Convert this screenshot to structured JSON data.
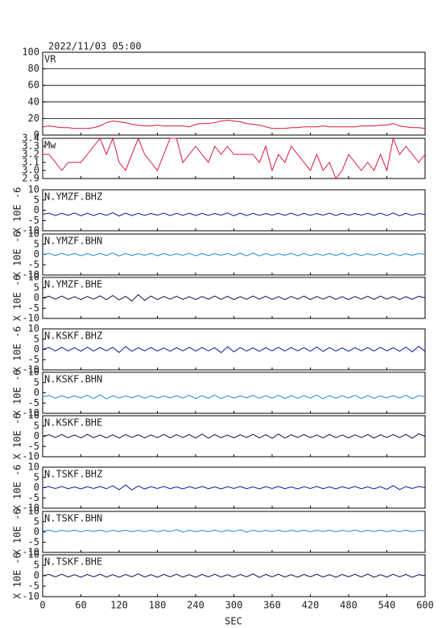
{
  "chart_data": {
    "type": "line",
    "title": "2022/11/03 05:00",
    "xlabel": "SEC",
    "xlim": [
      0,
      600
    ],
    "xticks": [
      0,
      60,
      120,
      180,
      240,
      300,
      360,
      420,
      480,
      540,
      600
    ],
    "x": [
      0,
      10,
      20,
      30,
      40,
      50,
      60,
      70,
      80,
      90,
      100,
      110,
      120,
      130,
      140,
      150,
      160,
      170,
      180,
      190,
      200,
      210,
      220,
      230,
      240,
      250,
      260,
      270,
      280,
      290,
      300,
      310,
      320,
      330,
      340,
      350,
      360,
      370,
      380,
      390,
      400,
      410,
      420,
      430,
      440,
      450,
      460,
      470,
      480,
      490,
      500,
      510,
      520,
      530,
      540,
      550,
      560,
      570,
      580,
      590,
      600
    ],
    "panels": [
      {
        "name": "VR",
        "color": "#dc143c",
        "ylim": [
          0,
          100
        ],
        "yticks": [
          0,
          20,
          40,
          60,
          80,
          100
        ],
        "grid": true,
        "values": [
          10,
          11,
          10,
          9,
          9,
          8,
          8,
          8,
          9,
          11,
          15,
          17,
          16,
          15,
          13,
          12,
          11,
          11,
          12,
          11,
          11,
          11,
          11,
          10,
          13,
          14,
          14,
          15,
          17,
          18,
          17,
          16,
          14,
          13,
          12,
          10,
          8,
          8,
          8,
          9,
          9,
          10,
          10,
          10,
          11,
          10,
          10,
          10,
          10,
          10,
          11,
          11,
          11,
          12,
          12,
          14,
          11,
          10,
          9,
          9,
          8
        ]
      },
      {
        "name": "Mw",
        "color": "#dc143c",
        "ylim": [
          2.9,
          3.4
        ],
        "yticks": [
          2.9,
          {
            "value": 3,
            "label": "3.0"
          },
          3.1,
          3.2,
          3.3,
          3.4
        ],
        "grid": false,
        "values": [
          3.2,
          3.2,
          3.1,
          3.0,
          3.1,
          3.1,
          3.1,
          3.2,
          3.3,
          3.4,
          3.2,
          3.4,
          3.1,
          3.0,
          3.2,
          3.4,
          3.2,
          3.1,
          3.0,
          3.2,
          3.4,
          3.4,
          3.1,
          3.2,
          3.3,
          3.2,
          3.1,
          3.3,
          3.2,
          3.3,
          3.2,
          3.2,
          3.2,
          3.2,
          3.1,
          3.3,
          3.0,
          3.2,
          3.1,
          3.3,
          3.2,
          3.1,
          3.0,
          3.2,
          3.0,
          3.1,
          2.9,
          3.0,
          3.2,
          3.1,
          3.0,
          3.1,
          3.0,
          3.2,
          3.0,
          3.4,
          3.2,
          3.3,
          3.2,
          3.1,
          3.2
        ]
      },
      {
        "name": "N.YMZF.BHZ",
        "color": "#0a1aa8",
        "ylabel": "X 10E -6",
        "ylim": [
          -10,
          10
        ],
        "yticks": [
          -10,
          -5,
          0,
          5,
          10
        ],
        "grid": false,
        "values": [
          -2.0,
          -1.4,
          -2.6,
          -1.5,
          -2.5,
          -1.3,
          -2.7,
          -1.4,
          -2.6,
          -1.5,
          -2.5,
          -1.2,
          -2.8,
          -1.4,
          -2.6,
          -1.5,
          -2.5,
          -1.6,
          -2.4,
          -1.4,
          -2.6,
          -1.5,
          -2.5,
          -1.4,
          -2.6,
          -1.5,
          -2.5,
          -1.6,
          -2.4,
          -1.3,
          -2.7,
          -1.4,
          -2.6,
          -1.5,
          -2.5,
          -1.6,
          -2.4,
          -1.5,
          -2.5,
          -1.4,
          -2.6,
          -1.5,
          -2.5,
          -1.6,
          -2.4,
          -1.4,
          -2.6,
          -1.5,
          -2.5,
          -1.6,
          -2.4,
          -1.5,
          -2.5,
          -1.4,
          -2.6,
          -1.3,
          -2.7,
          -1.5,
          -2.5,
          -1.6,
          -2.0
        ]
      },
      {
        "name": "N.YMZF.BHN",
        "color": "#1e8ad6",
        "ylabel": "X 10E -6",
        "ylim": [
          -10,
          10
        ],
        "yticks": [
          -10,
          -5,
          0,
          5,
          10
        ],
        "grid": false,
        "values": [
          0.0,
          0.5,
          -0.5,
          0.6,
          -0.4,
          0.5,
          -0.6,
          0.4,
          -0.5,
          0.6,
          -0.5,
          0.8,
          -0.7,
          0.5,
          -0.5,
          0.4,
          -0.4,
          0.6,
          -0.6,
          0.5,
          -0.5,
          0.4,
          -0.4,
          0.6,
          -0.6,
          0.5,
          -0.5,
          0.4,
          -0.4,
          0.5,
          -0.5,
          0.6,
          -0.6,
          0.7,
          -0.7,
          0.5,
          -0.5,
          0.4,
          -0.4,
          0.6,
          -0.6,
          0.5,
          -0.5,
          0.4,
          -0.4,
          0.5,
          -0.5,
          0.6,
          -0.6,
          0.5,
          -0.5,
          0.4,
          -0.4,
          0.5,
          -0.5,
          0.6,
          -0.6,
          0.4,
          -0.4,
          0.5,
          0.0
        ]
      },
      {
        "name": "N.YMZF.BHE",
        "color": "#101050",
        "ylabel": "X 10E -6",
        "ylim": [
          -10,
          10
        ],
        "yticks": [
          -10,
          -5,
          0,
          5,
          10
        ],
        "grid": false,
        "values": [
          0.0,
          0.8,
          -0.6,
          0.9,
          -0.7,
          0.6,
          -0.8,
          0.7,
          -0.6,
          1.0,
          -0.9,
          1.2,
          -1.0,
          0.8,
          -1.5,
          1.6,
          -1.2,
          0.9,
          -0.8,
          0.7,
          -0.6,
          0.8,
          -0.7,
          0.6,
          -0.8,
          0.7,
          -0.6,
          0.9,
          -0.7,
          0.8,
          -0.8,
          0.6,
          -0.7,
          0.9,
          -0.6,
          0.8,
          -0.7,
          0.6,
          -0.8,
          0.7,
          -0.6,
          0.9,
          -0.8,
          0.7,
          -0.6,
          0.8,
          -0.7,
          0.6,
          -0.8,
          0.7,
          -0.6,
          0.8,
          -0.7,
          0.9,
          -0.6,
          0.7,
          -0.8,
          0.6,
          -0.7,
          0.8,
          0.0
        ]
      },
      {
        "name": "N.KSKF.BHZ",
        "color": "#0a1aa8",
        "ylabel": "X 10E -6",
        "ylim": [
          -10,
          10
        ],
        "yticks": [
          -10,
          -5,
          0,
          5,
          10
        ],
        "grid": false,
        "values": [
          0.0,
          0.9,
          -0.8,
          1.0,
          -0.7,
          0.8,
          -0.9,
          1.1,
          -0.8,
          0.9,
          -0.7,
          1.0,
          -1.5,
          1.4,
          -0.9,
          0.8,
          -0.7,
          0.9,
          -0.8,
          0.7,
          -0.9,
          0.8,
          -0.7,
          1.0,
          -0.8,
          0.9,
          -0.7,
          0.8,
          -1.6,
          1.3,
          -1.2,
          0.9,
          -0.8,
          0.7,
          -0.9,
          0.8,
          -0.7,
          1.0,
          -0.8,
          0.9,
          -0.7,
          0.8,
          -0.9,
          1.2,
          -1.0,
          0.9,
          -0.8,
          0.7,
          -0.9,
          0.8,
          -0.7,
          0.9,
          -0.8,
          1.0,
          -0.7,
          0.8,
          -0.9,
          1.1,
          -1.2,
          1.5,
          -1.0
        ]
      },
      {
        "name": "N.KSKF.BHN",
        "color": "#1e8ad6",
        "ylabel": "X 10E -6",
        "ylim": [
          -10,
          10
        ],
        "yticks": [
          -10,
          -5,
          0,
          5,
          10
        ],
        "grid": false,
        "values": [
          -2.0,
          -1.3,
          -2.7,
          -1.4,
          -2.6,
          -1.5,
          -2.5,
          -1.2,
          -2.8,
          -0.9,
          -3.0,
          -1.4,
          -2.6,
          -1.5,
          -2.5,
          -1.3,
          -2.7,
          -1.4,
          -2.6,
          -1.5,
          -2.5,
          -1.4,
          -2.6,
          -1.2,
          -2.8,
          -1.3,
          -2.7,
          -1.0,
          -2.9,
          -1.4,
          -2.6,
          -1.5,
          -2.5,
          -1.3,
          -2.7,
          -1.4,
          -2.6,
          -1.2,
          -2.8,
          -1.3,
          -2.7,
          -1.4,
          -2.6,
          -1.1,
          -2.9,
          -1.3,
          -2.7,
          -1.4,
          -2.6,
          -1.2,
          -2.8,
          -1.3,
          -2.7,
          -1.5,
          -2.5,
          -1.4,
          -2.6,
          -1.2,
          -2.8,
          -1.4,
          -2.0
        ]
      },
      {
        "name": "N.KSKF.BHE",
        "color": "#101050",
        "ylabel": "X 10E -6",
        "ylim": [
          -10,
          10
        ],
        "yticks": [
          -10,
          -5,
          0,
          5,
          10
        ],
        "grid": false,
        "values": [
          0.0,
          0.7,
          -0.6,
          0.8,
          -0.7,
          0.6,
          -0.8,
          0.9,
          -0.7,
          0.6,
          -0.8,
          0.7,
          -0.9,
          0.8,
          -0.6,
          0.7,
          -0.8,
          0.6,
          -0.7,
          0.9,
          -0.8,
          0.7,
          -0.6,
          0.8,
          -0.9,
          1.1,
          -1.0,
          0.8,
          -0.7,
          0.6,
          -0.8,
          0.7,
          -0.6,
          0.9,
          -0.8,
          0.7,
          -1.0,
          1.1,
          -0.9,
          0.7,
          -0.6,
          0.8,
          -0.7,
          0.6,
          -0.8,
          0.9,
          -0.7,
          0.6,
          -0.8,
          0.7,
          -0.6,
          0.8,
          -0.9,
          0.7,
          -0.6,
          0.8,
          -0.7,
          0.9,
          -1.0,
          1.2,
          0.0
        ]
      },
      {
        "name": "N.TSKF.BHZ",
        "color": "#0a1aa8",
        "ylabel": "X 10E -6",
        "ylim": [
          -10,
          10
        ],
        "yticks": [
          -10,
          -5,
          0,
          5,
          10
        ],
        "grid": false,
        "values": [
          0.0,
          0.5,
          -0.4,
          0.6,
          -0.5,
          0.4,
          -0.6,
          0.5,
          -0.4,
          0.6,
          -0.5,
          0.9,
          -1.0,
          1.3,
          -1.1,
          0.8,
          -0.6,
          0.5,
          -0.4,
          0.6,
          -0.5,
          0.4,
          -0.6,
          0.5,
          -0.4,
          0.6,
          -0.5,
          0.4,
          -0.6,
          0.5,
          -0.4,
          0.6,
          -0.5,
          0.4,
          -0.6,
          0.5,
          -0.4,
          0.6,
          -0.5,
          0.4,
          -0.6,
          0.5,
          -0.4,
          0.6,
          -0.5,
          0.4,
          -0.6,
          0.5,
          -0.4,
          0.6,
          -0.5,
          0.4,
          -0.6,
          0.5,
          -0.8,
          1.0,
          -0.9,
          0.5,
          -0.4,
          0.6,
          0.0
        ]
      },
      {
        "name": "N.TSKF.BHN",
        "color": "#1e8ad6",
        "ylabel": "X 10E -6",
        "ylim": [
          -10,
          10
        ],
        "yticks": [
          -10,
          -5,
          0,
          5,
          10
        ],
        "grid": false,
        "values": [
          0.5,
          0.9,
          0.1,
          0.8,
          0.2,
          0.9,
          0.1,
          0.8,
          0.2,
          0.9,
          0.1,
          0.8,
          0.2,
          0.9,
          0.1,
          0.8,
          0.2,
          0.9,
          0.1,
          0.8,
          0.2,
          1.1,
          -0.1,
          0.9,
          0.1,
          0.8,
          0.2,
          0.9,
          0.1,
          0.8,
          0.2,
          1.0,
          -0.1,
          0.9,
          0.1,
          0.8,
          0.2,
          0.9,
          0.1,
          0.8,
          0.2,
          0.9,
          0.1,
          0.8,
          0.2,
          0.9,
          0.1,
          0.8,
          0.2,
          0.9,
          0.1,
          0.8,
          0.2,
          0.9,
          0.1,
          0.8,
          0.2,
          0.9,
          0.1,
          0.8,
          0.5
        ]
      },
      {
        "name": "N.TSKF.BHE",
        "color": "#101050",
        "ylabel": "X 10E -6",
        "ylim": [
          -10,
          10
        ],
        "yticks": [
          -10,
          -5,
          0,
          5,
          10
        ],
        "grid": false,
        "values": [
          0.0,
          0.6,
          -0.5,
          0.7,
          -0.6,
          0.5,
          -0.7,
          0.6,
          -0.5,
          0.7,
          -0.6,
          0.5,
          -0.7,
          0.6,
          -0.5,
          0.9,
          -0.6,
          0.5,
          -0.7,
          0.6,
          -0.5,
          0.7,
          -0.6,
          0.5,
          -0.7,
          0.6,
          -0.5,
          0.7,
          -0.6,
          0.5,
          -0.7,
          0.6,
          -0.5,
          0.9,
          -0.8,
          0.6,
          -0.5,
          0.7,
          -0.6,
          0.5,
          -0.7,
          0.6,
          -0.5,
          0.7,
          -0.6,
          0.5,
          -0.7,
          0.6,
          -0.5,
          0.7,
          -0.6,
          0.8,
          -0.7,
          0.5,
          -0.6,
          0.7,
          -0.5,
          0.6,
          -0.7,
          0.5,
          0.0
        ]
      }
    ]
  }
}
